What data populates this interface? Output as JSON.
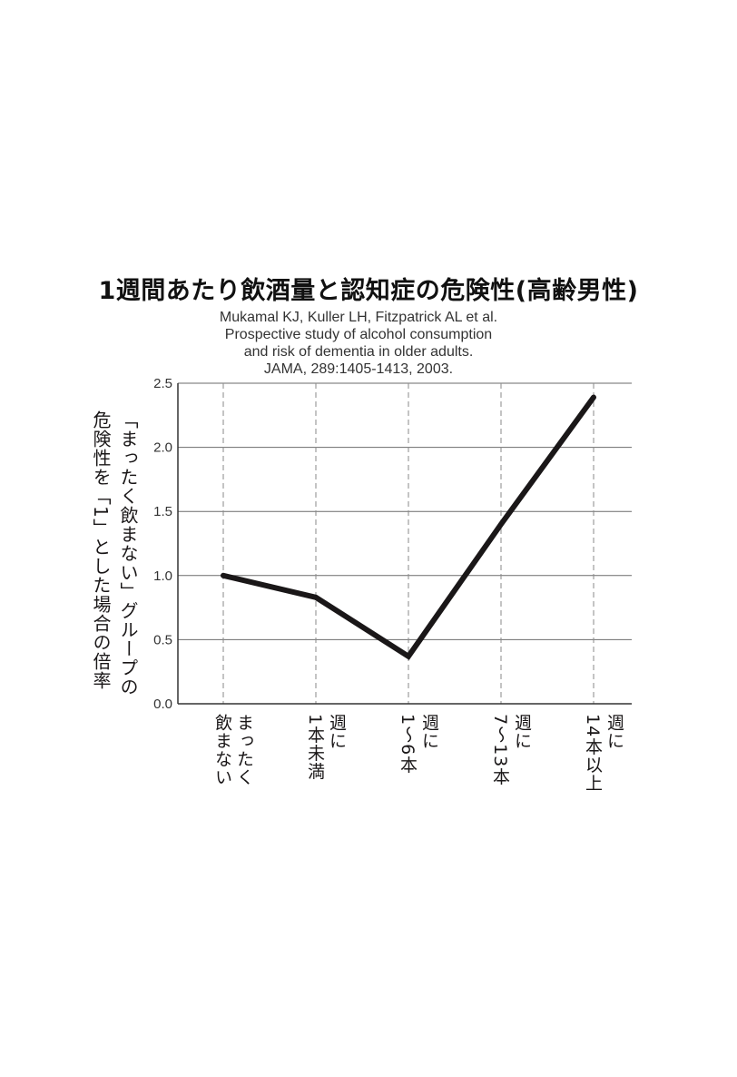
{
  "title": "1週間あたり飲酒量と認知症の危険性(高齢男性)",
  "citation": [
    "Mukamal KJ, Kuller LH, Fitzpatrick AL et al.",
    "Prospective study of alcohol consumption",
    "and risk of dementia in older adults.",
    "JAMA, 289:1405-1413, 2003."
  ],
  "chart_data": {
    "type": "line",
    "title": "1週間あたり飲酒量と認知症の危険性(高齢男性)",
    "ylabel_lines": [
      "「まったく飲まない」グループの",
      "危険性を「1」とした場合の倍率"
    ],
    "xlabel": "",
    "categories": [
      [
        "まったく",
        "飲まない"
      ],
      [
        "週に",
        "1本未満"
      ],
      [
        "週に",
        "1〜6本"
      ],
      [
        "週に",
        "7〜13本"
      ],
      [
        "週に",
        "14本以上"
      ]
    ],
    "values": [
      1.0,
      0.83,
      0.37,
      1.4,
      2.39
    ],
    "ylim": [
      0,
      2.5
    ],
    "yticks": [
      "0.0",
      "0.5",
      "1.0",
      "1.5",
      "2.0",
      "2.5"
    ],
    "grid": "horizontal solid, vertical dashed at categories",
    "line_color": "#1a1718"
  }
}
